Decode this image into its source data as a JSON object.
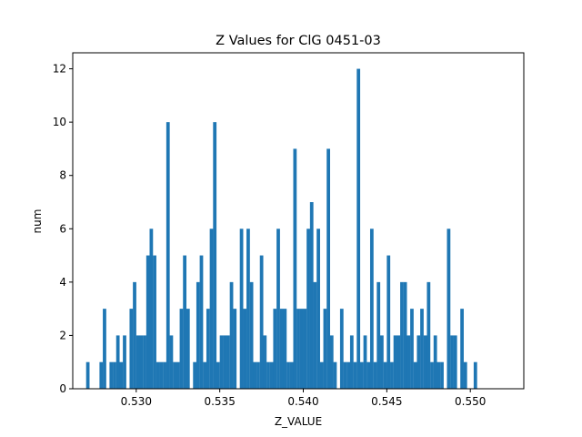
{
  "chart_data": {
    "type": "bar",
    "title": "Z Values for ClG 0451-03",
    "xlabel": "Z_VALUE",
    "ylabel": "num",
    "xlim": [
      0.5262,
      0.5532
    ],
    "ylim": [
      0,
      12.6
    ],
    "bin_width": 0.000205,
    "xticks": [
      0.53,
      0.535,
      0.54,
      0.545,
      0.55
    ],
    "xtick_labels": [
      "0.530",
      "0.535",
      "0.540",
      "0.545",
      "0.550"
    ],
    "yticks": [
      0,
      2,
      4,
      6,
      8,
      10,
      12
    ],
    "ytick_labels": [
      "0",
      "2",
      "4",
      "6",
      "8",
      "10",
      "12"
    ],
    "grid": false,
    "bar_color": "#1f77b4",
    "bins": [
      {
        "x": 0.527,
        "value": 1
      },
      {
        "x": 0.5278,
        "value": 1
      },
      {
        "x": 0.528,
        "value": 3
      },
      {
        "x": 0.5284,
        "value": 1
      },
      {
        "x": 0.5286,
        "value": 1
      },
      {
        "x": 0.5288,
        "value": 2
      },
      {
        "x": 0.529,
        "value": 1
      },
      {
        "x": 0.5292,
        "value": 2
      },
      {
        "x": 0.5296,
        "value": 3
      },
      {
        "x": 0.5298,
        "value": 4
      },
      {
        "x": 0.53,
        "value": 2
      },
      {
        "x": 0.5302,
        "value": 2
      },
      {
        "x": 0.5304,
        "value": 2
      },
      {
        "x": 0.5306,
        "value": 5
      },
      {
        "x": 0.5308,
        "value": 6
      },
      {
        "x": 0.531,
        "value": 5
      },
      {
        "x": 0.5312,
        "value": 1
      },
      {
        "x": 0.5314,
        "value": 1
      },
      {
        "x": 0.5316,
        "value": 1
      },
      {
        "x": 0.5318,
        "value": 10
      },
      {
        "x": 0.532,
        "value": 2
      },
      {
        "x": 0.5322,
        "value": 1
      },
      {
        "x": 0.5324,
        "value": 1
      },
      {
        "x": 0.5326,
        "value": 3
      },
      {
        "x": 0.5328,
        "value": 5
      },
      {
        "x": 0.533,
        "value": 3
      },
      {
        "x": 0.5334,
        "value": 1
      },
      {
        "x": 0.5336,
        "value": 4
      },
      {
        "x": 0.5338,
        "value": 5
      },
      {
        "x": 0.534,
        "value": 1
      },
      {
        "x": 0.5342,
        "value": 3
      },
      {
        "x": 0.5344,
        "value": 6
      },
      {
        "x": 0.5346,
        "value": 10
      },
      {
        "x": 0.5348,
        "value": 1
      },
      {
        "x": 0.535,
        "value": 2
      },
      {
        "x": 0.5352,
        "value": 2
      },
      {
        "x": 0.5354,
        "value": 2
      },
      {
        "x": 0.5356,
        "value": 4
      },
      {
        "x": 0.5358,
        "value": 3
      },
      {
        "x": 0.5362,
        "value": 6
      },
      {
        "x": 0.5364,
        "value": 3
      },
      {
        "x": 0.5366,
        "value": 6
      },
      {
        "x": 0.5368,
        "value": 4
      },
      {
        "x": 0.537,
        "value": 1
      },
      {
        "x": 0.5372,
        "value": 1
      },
      {
        "x": 0.5374,
        "value": 5
      },
      {
        "x": 0.5376,
        "value": 2
      },
      {
        "x": 0.5378,
        "value": 1
      },
      {
        "x": 0.538,
        "value": 1
      },
      {
        "x": 0.5382,
        "value": 3
      },
      {
        "x": 0.5384,
        "value": 6
      },
      {
        "x": 0.5386,
        "value": 3
      },
      {
        "x": 0.5388,
        "value": 3
      },
      {
        "x": 0.539,
        "value": 1
      },
      {
        "x": 0.5392,
        "value": 1
      },
      {
        "x": 0.5394,
        "value": 9
      },
      {
        "x": 0.5396,
        "value": 3
      },
      {
        "x": 0.5398,
        "value": 3
      },
      {
        "x": 0.54,
        "value": 3
      },
      {
        "x": 0.5402,
        "value": 6
      },
      {
        "x": 0.5404,
        "value": 7
      },
      {
        "x": 0.5406,
        "value": 4
      },
      {
        "x": 0.5408,
        "value": 6
      },
      {
        "x": 0.541,
        "value": 1
      },
      {
        "x": 0.5412,
        "value": 3
      },
      {
        "x": 0.5414,
        "value": 9
      },
      {
        "x": 0.5416,
        "value": 2
      },
      {
        "x": 0.5418,
        "value": 1
      },
      {
        "x": 0.5422,
        "value": 3
      },
      {
        "x": 0.5424,
        "value": 1
      },
      {
        "x": 0.5426,
        "value": 1
      },
      {
        "x": 0.5428,
        "value": 2
      },
      {
        "x": 0.543,
        "value": 1
      },
      {
        "x": 0.5432,
        "value": 12
      },
      {
        "x": 0.5434,
        "value": 1
      },
      {
        "x": 0.5436,
        "value": 2
      },
      {
        "x": 0.5438,
        "value": 1
      },
      {
        "x": 0.544,
        "value": 6
      },
      {
        "x": 0.5442,
        "value": 1
      },
      {
        "x": 0.5444,
        "value": 4
      },
      {
        "x": 0.5446,
        "value": 2
      },
      {
        "x": 0.5448,
        "value": 1
      },
      {
        "x": 0.545,
        "value": 5
      },
      {
        "x": 0.5452,
        "value": 1
      },
      {
        "x": 0.5454,
        "value": 2
      },
      {
        "x": 0.5456,
        "value": 2
      },
      {
        "x": 0.5458,
        "value": 4
      },
      {
        "x": 0.546,
        "value": 4
      },
      {
        "x": 0.5462,
        "value": 2
      },
      {
        "x": 0.5464,
        "value": 3
      },
      {
        "x": 0.5466,
        "value": 1
      },
      {
        "x": 0.5468,
        "value": 2
      },
      {
        "x": 0.547,
        "value": 3
      },
      {
        "x": 0.5472,
        "value": 2
      },
      {
        "x": 0.5474,
        "value": 4
      },
      {
        "x": 0.5476,
        "value": 1
      },
      {
        "x": 0.5478,
        "value": 2
      },
      {
        "x": 0.548,
        "value": 1
      },
      {
        "x": 0.5482,
        "value": 1
      },
      {
        "x": 0.5486,
        "value": 6
      },
      {
        "x": 0.5488,
        "value": 2
      },
      {
        "x": 0.549,
        "value": 2
      },
      {
        "x": 0.5494,
        "value": 3
      },
      {
        "x": 0.5496,
        "value": 1
      },
      {
        "x": 0.5502,
        "value": 1
      }
    ]
  }
}
